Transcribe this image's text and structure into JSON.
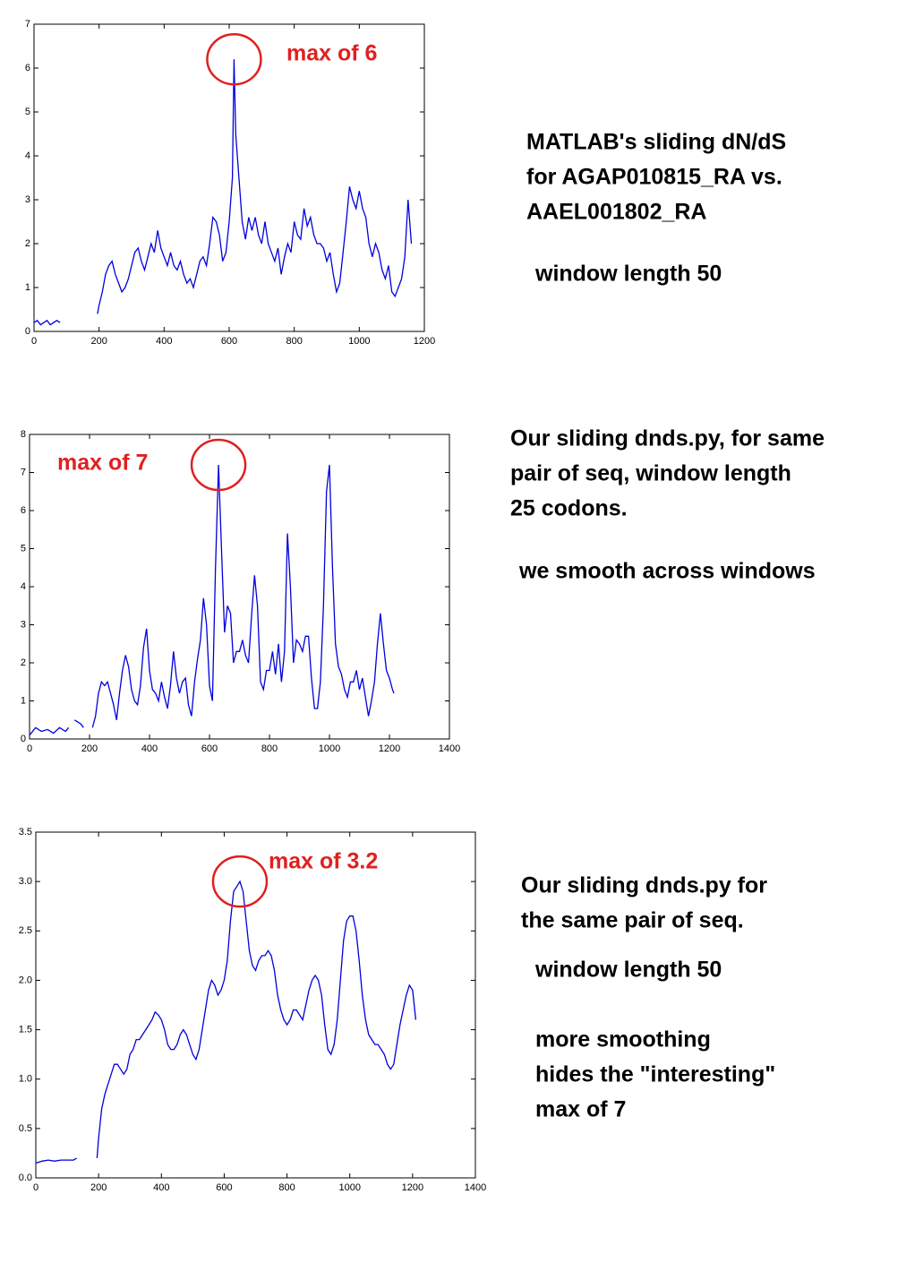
{
  "chart_data": [
    {
      "type": "line",
      "color": "#0000dd",
      "xlim": [
        0,
        1200
      ],
      "ylim": [
        0,
        7
      ],
      "xticks": [
        0,
        200,
        400,
        600,
        800,
        1000,
        1200
      ],
      "yticks": [
        0,
        1,
        2,
        3,
        4,
        5,
        6,
        7
      ],
      "annotation": "max of 6",
      "notes": [
        [
          "MATLAB's sliding dN/dS",
          "for AGAP010815_RA vs.",
          "AAEL001802_RA"
        ],
        [
          "window length 50"
        ]
      ],
      "x": [
        0,
        10,
        20,
        30,
        40,
        50,
        60,
        70,
        80,
        140,
        195,
        200,
        210,
        220,
        230,
        240,
        250,
        260,
        270,
        280,
        290,
        300,
        310,
        320,
        330,
        340,
        350,
        360,
        370,
        380,
        390,
        400,
        410,
        420,
        430,
        440,
        450,
        460,
        470,
        480,
        490,
        500,
        510,
        520,
        530,
        540,
        550,
        560,
        570,
        580,
        590,
        600,
        610,
        615,
        620,
        630,
        640,
        650,
        660,
        670,
        680,
        690,
        700,
        710,
        720,
        730,
        740,
        750,
        760,
        770,
        780,
        790,
        800,
        810,
        820,
        830,
        840,
        850,
        860,
        870,
        880,
        890,
        900,
        910,
        920,
        930,
        940,
        950,
        960,
        970,
        980,
        990,
        1000,
        1010,
        1020,
        1030,
        1040,
        1050,
        1060,
        1070,
        1080,
        1090,
        1100,
        1110,
        1120,
        1130,
        1140,
        1150,
        1160
      ],
      "values": [
        0.2,
        0.25,
        0.15,
        0.2,
        0.25,
        0.15,
        0.2,
        0.25,
        0.2,
        null,
        0.4,
        0.6,
        0.9,
        1.3,
        1.5,
        1.6,
        1.3,
        1.1,
        0.9,
        1.0,
        1.2,
        1.5,
        1.8,
        1.9,
        1.6,
        1.4,
        1.7,
        2.0,
        1.8,
        2.3,
        1.9,
        1.7,
        1.5,
        1.8,
        1.5,
        1.4,
        1.6,
        1.3,
        1.1,
        1.2,
        1.0,
        1.3,
        1.6,
        1.7,
        1.5,
        2.0,
        2.6,
        2.5,
        2.2,
        1.6,
        1.8,
        2.5,
        3.5,
        6.2,
        4.5,
        3.5,
        2.5,
        2.1,
        2.6,
        2.3,
        2.6,
        2.2,
        2.0,
        2.5,
        2.0,
        1.8,
        1.6,
        1.9,
        1.3,
        1.7,
        2.0,
        1.8,
        2.5,
        2.2,
        2.1,
        2.8,
        2.4,
        2.6,
        2.2,
        2.0,
        2.0,
        1.9,
        1.6,
        1.8,
        1.3,
        0.9,
        1.1,
        1.8,
        2.5,
        3.3,
        3.0,
        2.8,
        3.2,
        2.8,
        2.6,
        2.0,
        1.7,
        2.0,
        1.8,
        1.4,
        1.2,
        1.5,
        0.9,
        0.8,
        1.0,
        1.2,
        1.7,
        3.0,
        2.0
      ]
    },
    {
      "type": "line",
      "color": "#0000dd",
      "xlim": [
        0,
        1400
      ],
      "ylim": [
        0,
        8
      ],
      "xticks": [
        0,
        200,
        400,
        600,
        800,
        1000,
        1200,
        1400
      ],
      "yticks": [
        0,
        1,
        2,
        3,
        4,
        5,
        6,
        7,
        8
      ],
      "annotation": "max of 7",
      "notes": [
        [
          "Our sliding dnds.py, for same",
          "pair of seq, window length",
          "25 codons."
        ],
        [
          "we smooth across windows"
        ]
      ],
      "x": [
        0,
        20,
        40,
        60,
        80,
        100,
        120,
        130,
        140,
        150,
        170,
        180,
        190,
        210,
        220,
        230,
        240,
        250,
        260,
        270,
        280,
        290,
        300,
        310,
        320,
        330,
        340,
        350,
        360,
        370,
        380,
        390,
        400,
        410,
        420,
        430,
        440,
        450,
        460,
        470,
        480,
        490,
        500,
        510,
        520,
        530,
        540,
        550,
        560,
        570,
        580,
        590,
        600,
        610,
        620,
        630,
        640,
        650,
        660,
        670,
        680,
        690,
        700,
        710,
        720,
        730,
        740,
        750,
        760,
        770,
        780,
        790,
        800,
        810,
        820,
        830,
        840,
        850,
        860,
        870,
        880,
        890,
        900,
        910,
        920,
        930,
        940,
        950,
        960,
        970,
        980,
        990,
        1000,
        1010,
        1020,
        1030,
        1040,
        1050,
        1060,
        1070,
        1080,
        1090,
        1100,
        1110,
        1120,
        1130,
        1140,
        1150,
        1160,
        1170,
        1180,
        1190,
        1200,
        1210,
        1215
      ],
      "values": [
        0.1,
        0.3,
        0.2,
        0.25,
        0.15,
        0.3,
        0.2,
        0.3,
        null,
        0.5,
        0.4,
        0.3,
        null,
        0.3,
        0.6,
        1.2,
        1.5,
        1.4,
        1.5,
        1.2,
        0.9,
        0.5,
        1.2,
        1.8,
        2.2,
        1.9,
        1.3,
        1.0,
        0.9,
        1.4,
        2.4,
        2.9,
        1.8,
        1.3,
        1.2,
        1.0,
        1.5,
        1.1,
        0.8,
        1.4,
        2.3,
        1.6,
        1.2,
        1.5,
        1.6,
        0.9,
        0.6,
        1.5,
        2.1,
        2.6,
        3.7,
        3.0,
        1.4,
        1.0,
        4.5,
        7.2,
        5.0,
        2.8,
        3.5,
        3.3,
        2.0,
        2.3,
        2.3,
        2.6,
        2.2,
        2.0,
        3.2,
        4.3,
        3.5,
        1.5,
        1.3,
        1.8,
        1.8,
        2.3,
        1.7,
        2.5,
        1.5,
        2.3,
        5.4,
        4.0,
        2.0,
        2.6,
        2.5,
        2.3,
        2.7,
        2.7,
        1.6,
        0.8,
        0.8,
        1.5,
        3.5,
        6.5,
        7.2,
        4.5,
        2.5,
        1.9,
        1.7,
        1.3,
        1.1,
        1.5,
        1.5,
        1.8,
        1.3,
        1.6,
        1.1,
        0.6,
        1.0,
        1.5,
        2.5,
        3.3,
        2.5,
        1.8,
        1.6,
        1.3,
        1.2
      ]
    },
    {
      "type": "line",
      "color": "#0000dd",
      "xlim": [
        0,
        1400
      ],
      "ylim": [
        0,
        3.5
      ],
      "xticks": [
        0,
        200,
        400,
        600,
        800,
        1000,
        1200,
        1400
      ],
      "yticks": [
        {
          "value": 0,
          "label": "0.0"
        },
        0.5,
        {
          "value": 1,
          "label": "1.0"
        },
        1.5,
        {
          "value": 2,
          "label": "2.0"
        },
        2.5,
        {
          "value": 3,
          "label": "3.0"
        },
        3.5
      ],
      "annotation": "max of 3.2",
      "notes": [
        [
          "Our sliding dnds.py for",
          "the same pair of seq."
        ],
        [
          "window length 50"
        ],
        [
          "more smoothing",
          "hides the \"interesting\"",
          "max of 7"
        ]
      ],
      "x": [
        0,
        20,
        40,
        60,
        80,
        100,
        120,
        130,
        160,
        195,
        200,
        210,
        220,
        230,
        240,
        250,
        260,
        270,
        280,
        290,
        300,
        310,
        320,
        330,
        340,
        350,
        360,
        370,
        380,
        390,
        400,
        410,
        420,
        430,
        440,
        450,
        460,
        470,
        480,
        490,
        500,
        510,
        520,
        530,
        540,
        550,
        560,
        570,
        580,
        590,
        600,
        610,
        620,
        630,
        640,
        650,
        660,
        670,
        680,
        690,
        700,
        710,
        720,
        730,
        740,
        750,
        760,
        770,
        780,
        790,
        800,
        810,
        820,
        830,
        840,
        850,
        860,
        870,
        880,
        890,
        900,
        910,
        920,
        930,
        940,
        950,
        960,
        970,
        980,
        990,
        1000,
        1010,
        1020,
        1030,
        1040,
        1050,
        1060,
        1070,
        1080,
        1090,
        1100,
        1110,
        1120,
        1130,
        1140,
        1150,
        1160,
        1170,
        1180,
        1190,
        1200,
        1210
      ],
      "values": [
        0.15,
        0.17,
        0.18,
        0.17,
        0.18,
        0.18,
        0.18,
        0.2,
        null,
        0.2,
        0.4,
        0.7,
        0.85,
        0.95,
        1.05,
        1.15,
        1.15,
        1.1,
        1.05,
        1.1,
        1.25,
        1.3,
        1.4,
        1.4,
        1.45,
        1.5,
        1.55,
        1.6,
        1.68,
        1.65,
        1.6,
        1.5,
        1.35,
        1.3,
        1.3,
        1.35,
        1.45,
        1.5,
        1.45,
        1.35,
        1.25,
        1.2,
        1.3,
        1.5,
        1.7,
        1.9,
        2.0,
        1.95,
        1.85,
        1.9,
        2.0,
        2.2,
        2.6,
        2.9,
        2.95,
        3.0,
        2.9,
        2.6,
        2.3,
        2.15,
        2.1,
        2.2,
        2.25,
        2.25,
        2.3,
        2.25,
        2.1,
        1.85,
        1.7,
        1.6,
        1.55,
        1.6,
        1.7,
        1.7,
        1.65,
        1.6,
        1.75,
        1.9,
        2.0,
        2.05,
        2.0,
        1.85,
        1.55,
        1.3,
        1.25,
        1.35,
        1.6,
        2.0,
        2.4,
        2.6,
        2.65,
        2.65,
        2.5,
        2.2,
        1.85,
        1.6,
        1.45,
        1.4,
        1.35,
        1.35,
        1.3,
        1.25,
        1.15,
        1.1,
        1.15,
        1.35,
        1.55,
        1.7,
        1.85,
        1.95,
        1.9,
        1.6
      ]
    }
  ]
}
